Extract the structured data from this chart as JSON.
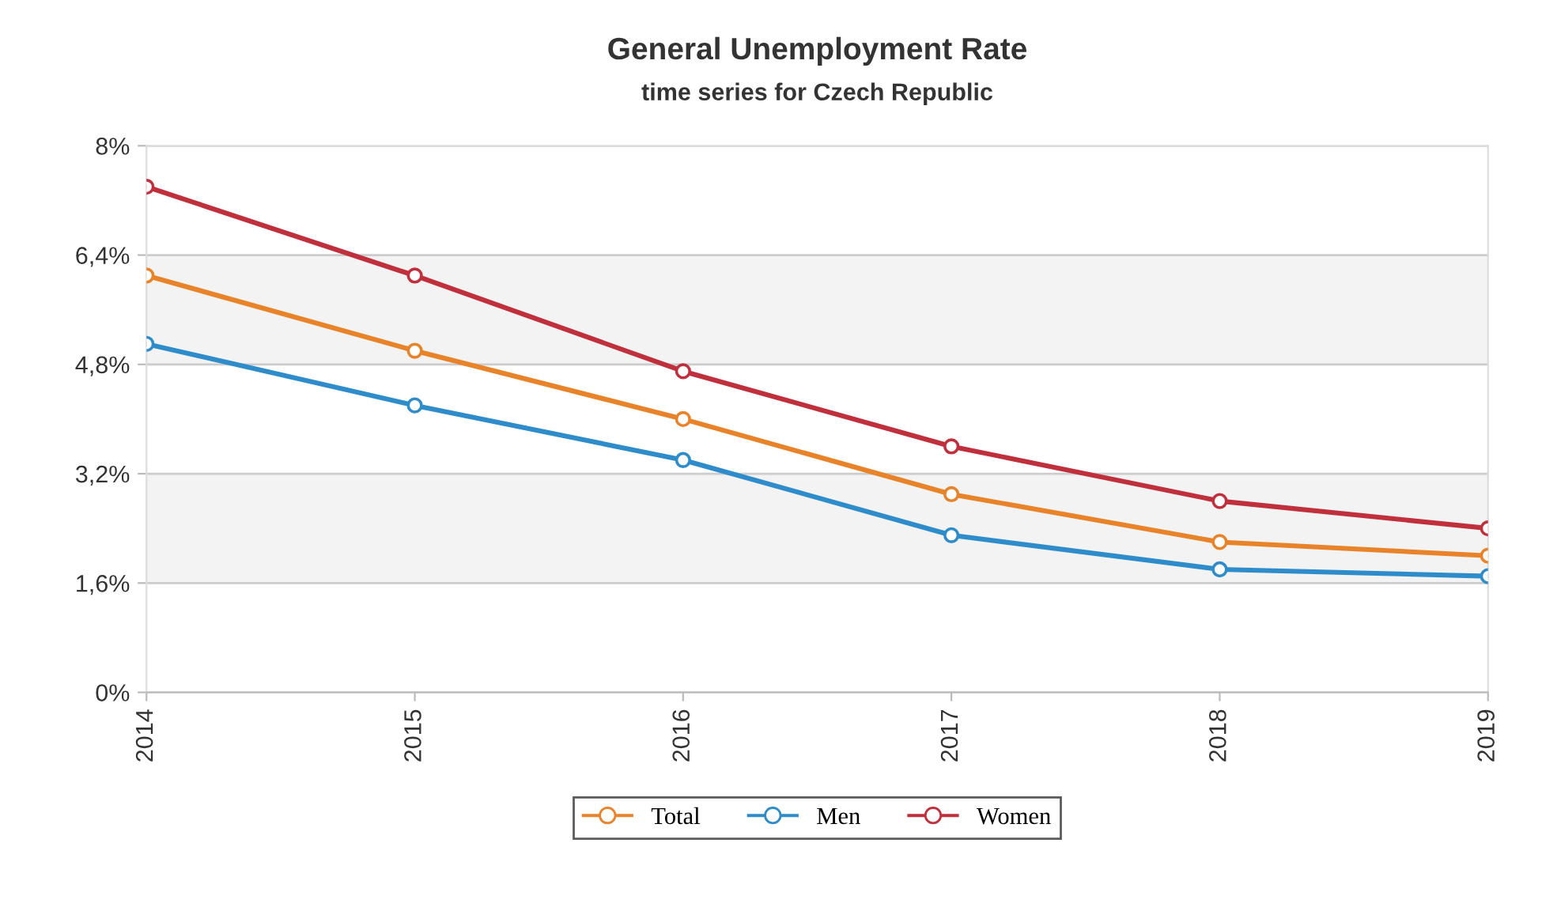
{
  "chart_data": {
    "type": "line",
    "title": "General Unemployment Rate",
    "subtitle": "time series for Czech Republic",
    "categories": [
      "2014",
      "2015",
      "2016",
      "2017",
      "2018",
      "2019"
    ],
    "series": [
      {
        "name": "Total",
        "color": "#e8832a",
        "values": [
          6.1,
          5.0,
          4.0,
          2.9,
          2.2,
          2.0
        ]
      },
      {
        "name": "Men",
        "color": "#2f8ccb",
        "values": [
          5.1,
          4.2,
          3.4,
          2.3,
          1.8,
          1.7
        ]
      },
      {
        "name": "Women",
        "color": "#c0303c",
        "values": [
          7.4,
          6.1,
          4.7,
          3.6,
          2.8,
          2.4
        ]
      }
    ],
    "ylim": [
      0,
      8
    ],
    "yticks": [
      {
        "value": 0,
        "label": "0%"
      },
      {
        "value": 1.6,
        "label": "1,6%"
      },
      {
        "value": 3.2,
        "label": "3,2%"
      },
      {
        "value": 4.8,
        "label": "4,8%"
      },
      {
        "value": 6.4,
        "label": "6,4%"
      },
      {
        "value": 8,
        "label": "8%"
      }
    ],
    "bands": [
      {
        "axis": "y",
        "from": 1.6,
        "to": 3.2,
        "color": "#f3f3f3"
      },
      {
        "axis": "y",
        "from": 4.8,
        "to": 6.4,
        "color": "#f3f3f3"
      }
    ],
    "grid": "y",
    "legend": "bottom",
    "marker": "circle",
    "line_style": "solid"
  }
}
